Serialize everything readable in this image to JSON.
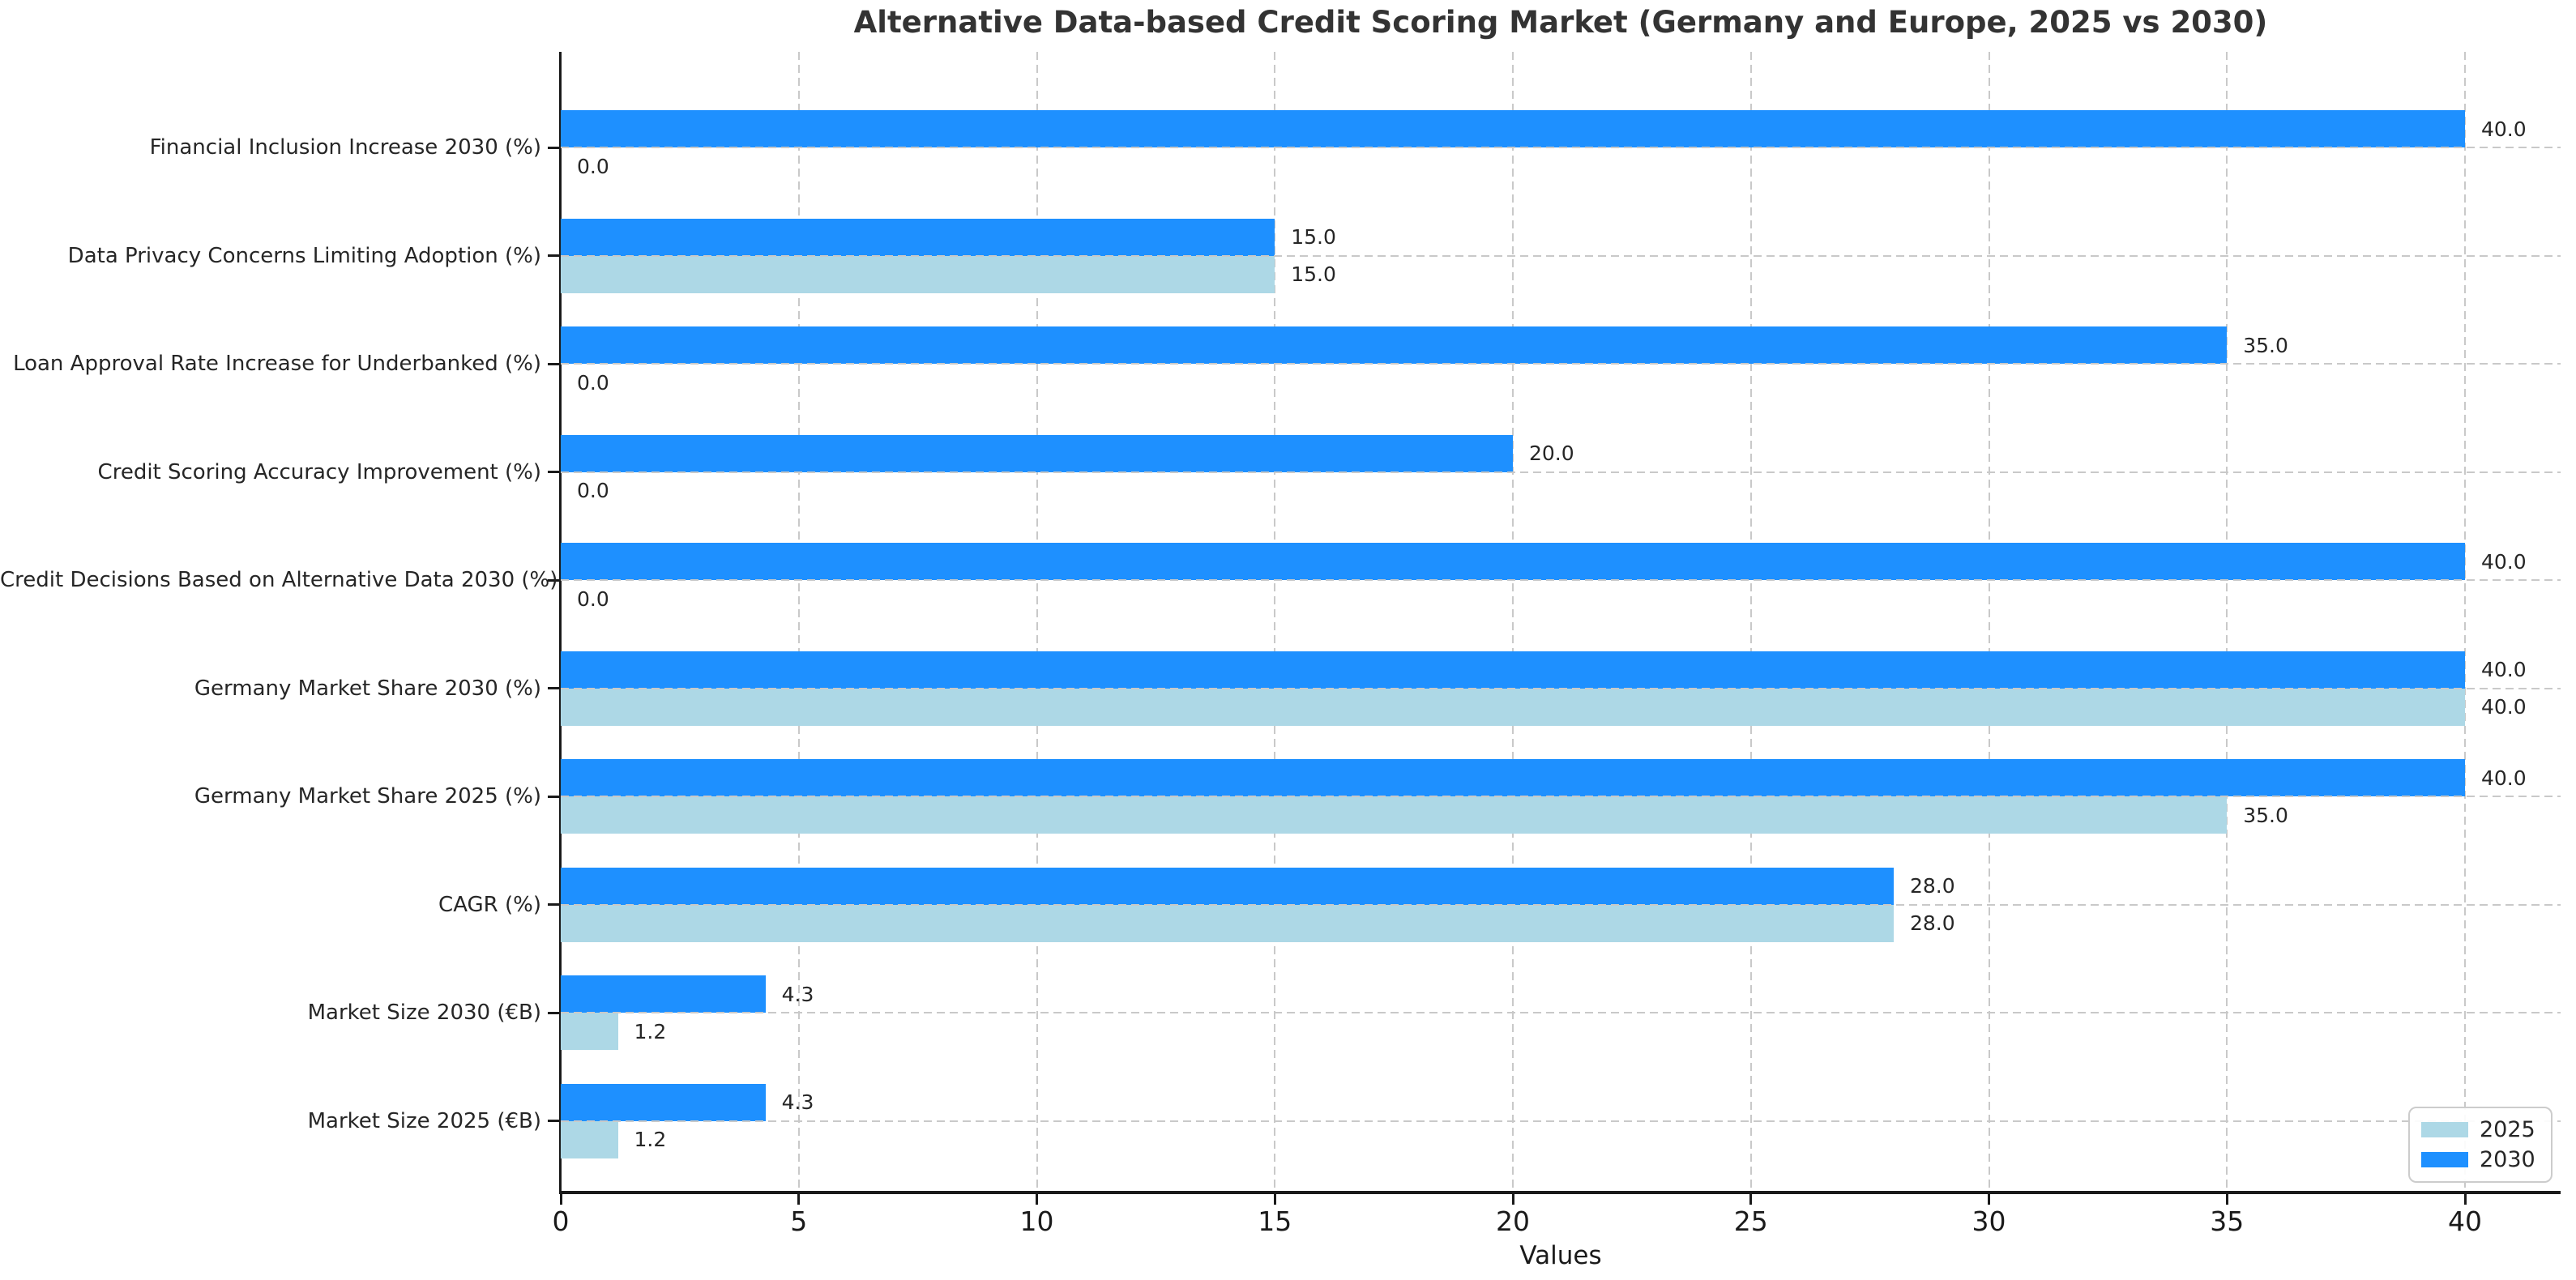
{
  "chart_data": {
    "type": "bar",
    "orientation": "horizontal",
    "title": "Alternative Data-based Credit Scoring Market (Germany and Europe, 2025 vs 2030)",
    "xlabel": "Values",
    "categories_top_to_bottom": [
      "Financial Inclusion Increase 2030 (%)",
      "Data Privacy Concerns Limiting Adoption (%)",
      "Loan Approval Rate Increase for Underbanked (%)",
      "Credit Scoring Accuracy Improvement (%)",
      "Credit Decisions Based on Alternative Data 2030 (%)",
      "Germany Market Share 2030 (%)",
      "Germany Market Share 2025 (%)",
      "CAGR (%)",
      "Market Size 2030 (€B)",
      "Market Size 2025 (€B)"
    ],
    "series": [
      {
        "name": "2025",
        "color": "#ADD8E6",
        "values": [
          0.0,
          15.0,
          0.0,
          0.0,
          0.0,
          40.0,
          35.0,
          28.0,
          1.2,
          1.2
        ]
      },
      {
        "name": "2030",
        "color": "#1E90FF",
        "values": [
          40.0,
          15.0,
          35.0,
          20.0,
          40.0,
          40.0,
          40.0,
          28.0,
          4.3,
          4.3
        ]
      }
    ],
    "bar_group_order_top_to_bottom": [
      "2030",
      "2025"
    ],
    "value_labels_shown": true,
    "value_label_decimals": 1,
    "xlim": [
      0,
      42
    ],
    "xticks": [
      0,
      5,
      10,
      15,
      20,
      25,
      30,
      35,
      40
    ],
    "grid": {
      "style": "dashed",
      "color": "#c9c9c9",
      "x": true,
      "y": true
    },
    "legend": {
      "position": "lower right",
      "entries": [
        "2025",
        "2030"
      ]
    },
    "colors": {
      "series_2025": "#ADD8E6",
      "series_2030": "#1E90FF",
      "text": "#262626",
      "title": "#333333",
      "spine": "#1a1a1a",
      "background": "#ffffff"
    }
  }
}
